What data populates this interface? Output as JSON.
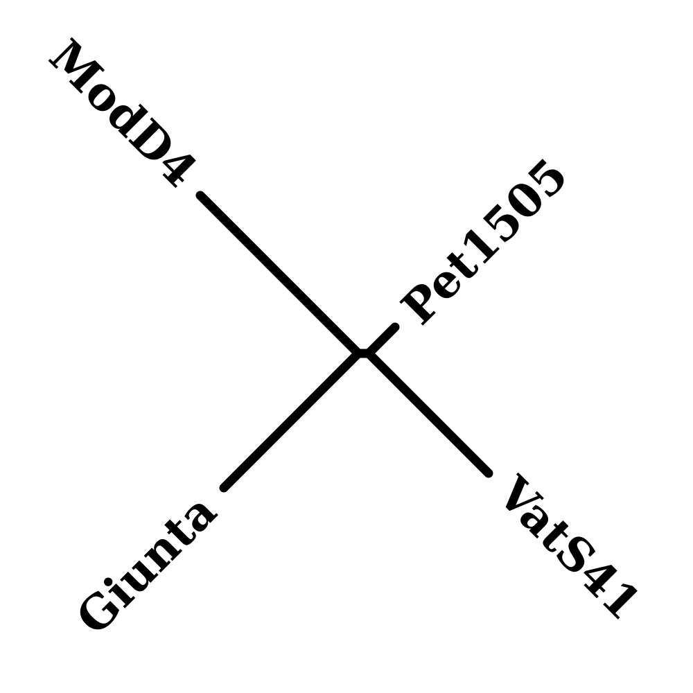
{
  "tree": {
    "type": "unrooted-phylogenetic-tree",
    "leaves": [
      {
        "id": "modd4",
        "label": "ModD4"
      },
      {
        "id": "pet1505",
        "label": "Pet1505"
      },
      {
        "id": "giunta",
        "label": "Giunta"
      },
      {
        "id": "vats41",
        "label": "VatS41"
      }
    ],
    "colors": {
      "line": "#000000",
      "background": "#ffffff"
    }
  }
}
